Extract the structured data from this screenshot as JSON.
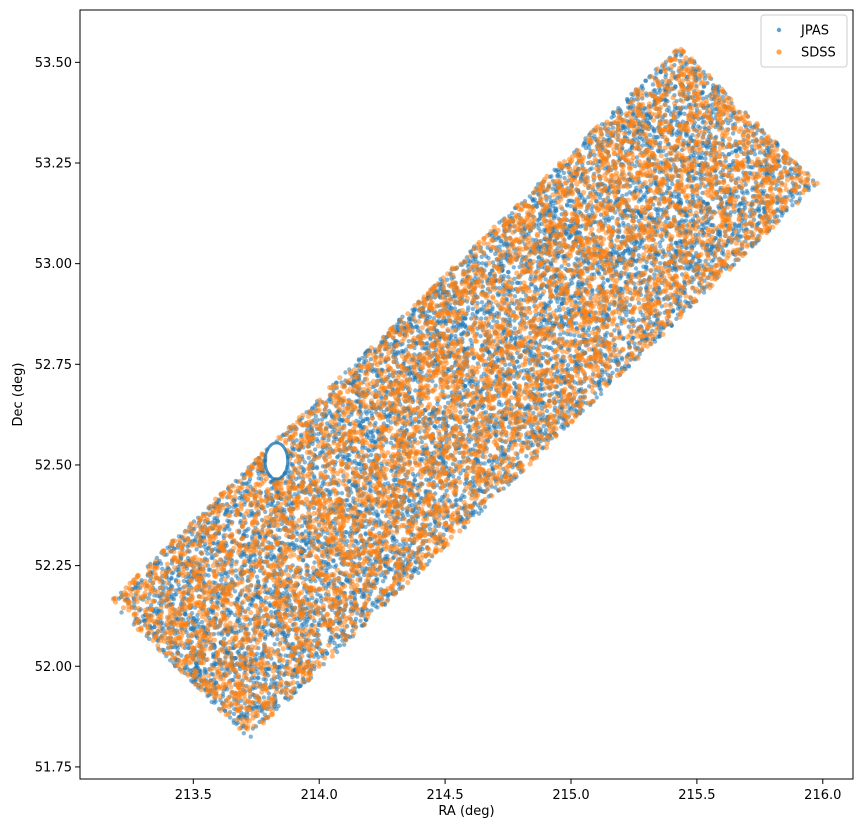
{
  "chart_data": {
    "type": "scatter",
    "title": "",
    "xlabel": "RA (deg)",
    "ylabel": "Dec (deg)",
    "xlim": [
      213.05,
      216.12
    ],
    "ylim": [
      51.72,
      53.63
    ],
    "xticks": [
      213.5,
      214.0,
      214.5,
      215.0,
      215.5,
      216.0
    ],
    "xtick_labels": [
      "213.5",
      "214.0",
      "214.5",
      "215.0",
      "215.5",
      "216.0"
    ],
    "yticks": [
      51.75,
      52.0,
      52.25,
      52.5,
      52.75,
      53.0,
      53.25,
      53.5
    ],
    "ytick_labels": [
      "51.75",
      "52.00",
      "52.25",
      "52.50",
      "52.75",
      "53.00",
      "53.25",
      "53.50"
    ],
    "grid": false,
    "legend_position": "top-right",
    "footprint_corners": [
      [
        213.17,
        52.16
      ],
      [
        213.72,
        51.82
      ],
      [
        215.99,
        53.2
      ],
      [
        215.43,
        53.54
      ]
    ],
    "series": [
      {
        "name": "JPAS",
        "color": "#1f77b4",
        "marker_size": 2.2,
        "opacity": 0.55
      },
      {
        "name": "SDSS",
        "color": "#ff7f0e",
        "marker_size": 2.6,
        "opacity": 0.55
      }
    ],
    "masked_regions": [
      {
        "ra": 213.83,
        "dec": 52.51,
        "radius": 0.045
      },
      {
        "ra": 214.02,
        "dec": 52.67,
        "radius": 0.015
      },
      {
        "ra": 214.45,
        "dec": 52.66,
        "radius": 0.015
      },
      {
        "ra": 214.02,
        "dec": 52.08,
        "radius": 0.02
      },
      {
        "ra": 214.22,
        "dec": 52.13,
        "radius": 0.015
      },
      {
        "ra": 214.68,
        "dec": 52.54,
        "radius": 0.012
      },
      {
        "ra": 214.81,
        "dec": 52.52,
        "radius": 0.012
      },
      {
        "ra": 214.58,
        "dec": 52.8,
        "radius": 0.012
      },
      {
        "ra": 215.26,
        "dec": 52.87,
        "radius": 0.012
      },
      {
        "ra": 215.45,
        "dec": 53.15,
        "radius": 0.012
      },
      {
        "ra": 213.72,
        "dec": 52.36,
        "radius": 0.012
      }
    ]
  }
}
